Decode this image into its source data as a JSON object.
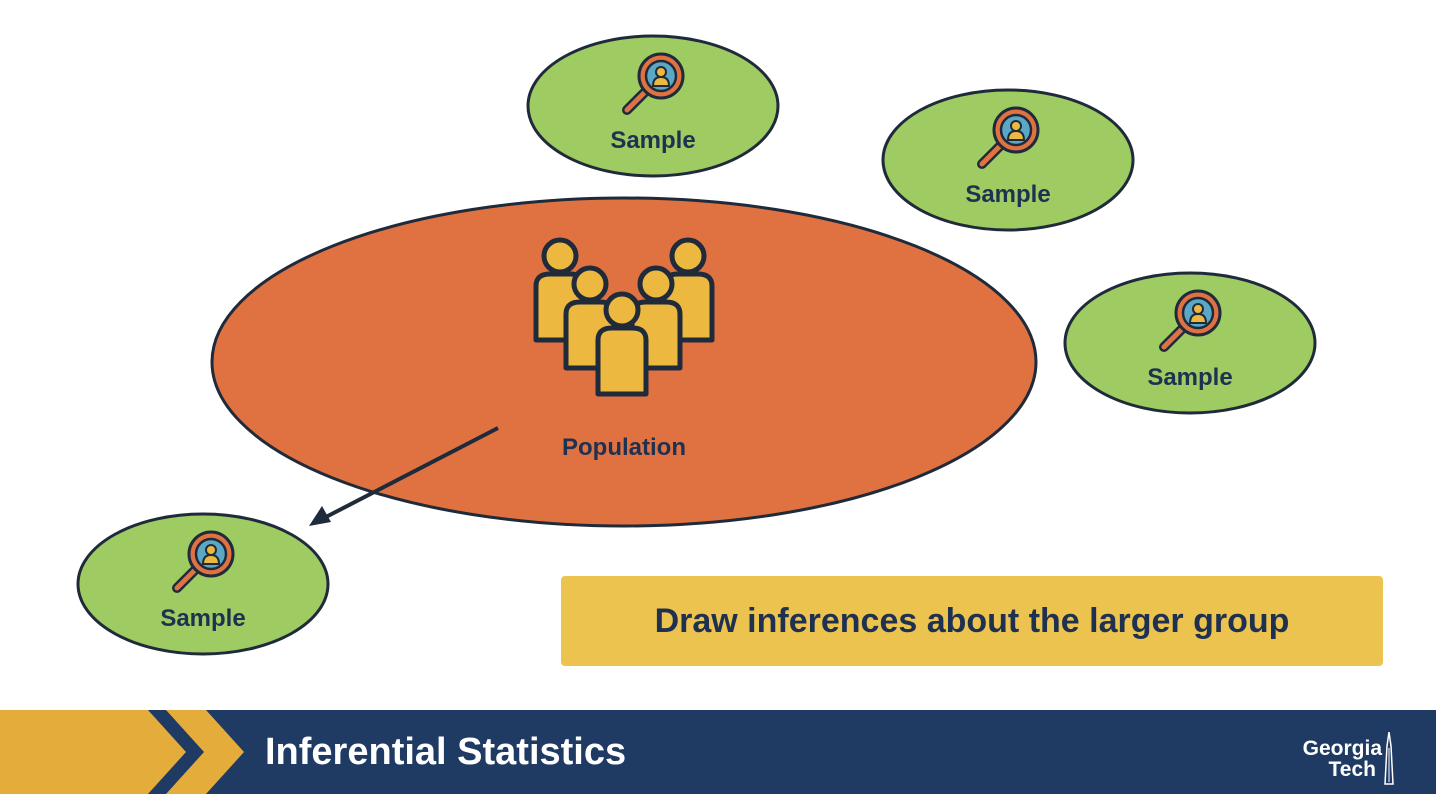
{
  "diagram": {
    "population_label": "Population",
    "sample_label": "Sample",
    "callout_text": "Draw inferences about the larger group"
  },
  "footer": {
    "title": "Inferential Statistics",
    "logo_line1": "Georgia",
    "logo_line2": "Tech"
  },
  "colors": {
    "population_fill": "#e07242",
    "sample_fill": "#9fcb63",
    "outline": "#1f2a3a",
    "people": "#ecb83f",
    "callout": "#ecc34f",
    "footer_navy": "#1f3a63",
    "footer_gold": "#e3ac3b",
    "text_navy": "#1f3150"
  }
}
